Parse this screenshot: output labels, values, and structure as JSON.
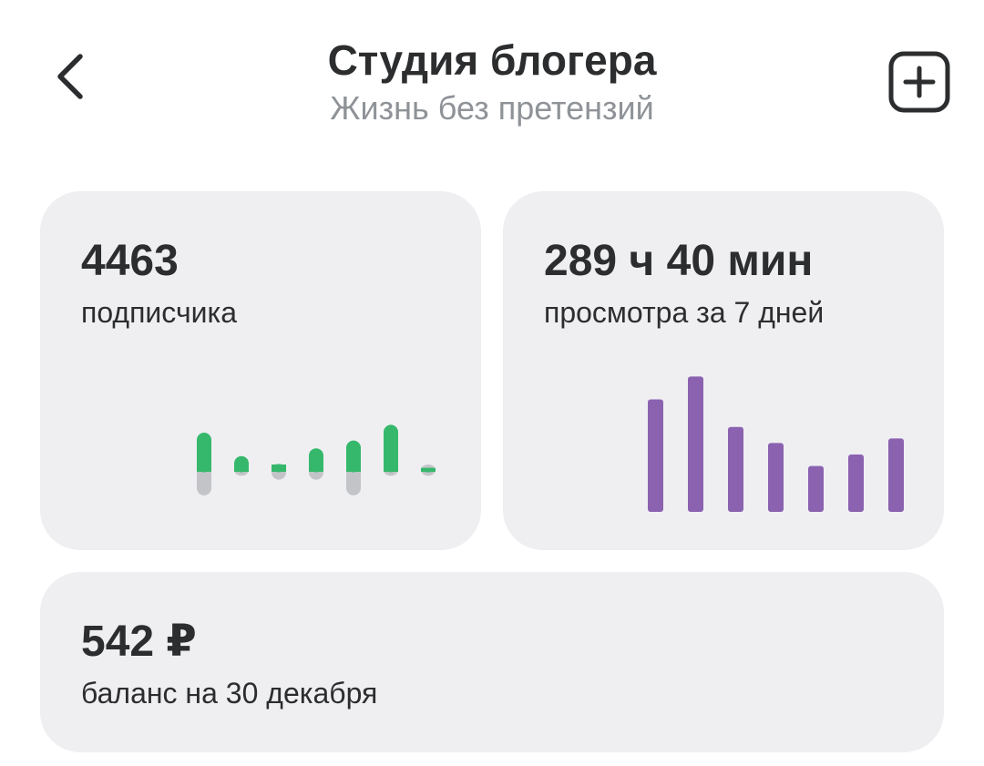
{
  "header": {
    "title": "Студия блогера",
    "subtitle": "Жизнь без претензий",
    "back_icon": "chevron-left-icon",
    "add_icon": "plus-square-icon"
  },
  "cards": {
    "subscribers": {
      "value": "4463",
      "label": "подписчика"
    },
    "views": {
      "value": "289 ч 40 мин",
      "label": "просмотра за 7 дней"
    },
    "balance": {
      "value": "542 ₽",
      "label": "баланс на 30 декабря"
    }
  },
  "colors": {
    "card_bg": "#efeff2",
    "gain": "#36b86c",
    "loss": "#c3c4c7",
    "views_bar": "#8b62b0",
    "text": "#2c2d2e",
    "subtext": "#8f9398"
  },
  "chart_data": [
    {
      "type": "bar",
      "series": [
        {
          "values": [
            10,
            4,
            2,
            6,
            8,
            12,
            1
          ]
        },
        {
          "values": [
            -6,
            -1,
            -2,
            -2,
            -6,
            -1,
            -1
          ]
        }
      ]
    },
    {
      "type": "bar",
      "values": [
        49,
        59,
        37,
        30,
        20,
        25,
        32
      ]
    }
  ]
}
